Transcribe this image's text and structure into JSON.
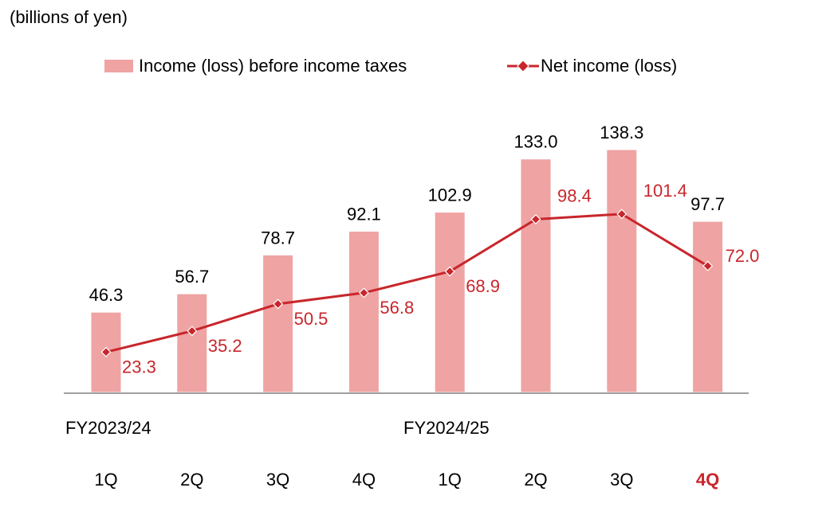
{
  "unit_label": "(billions of yen)",
  "legend": {
    "bar": "Income (loss) before income taxes",
    "line": "Net income (loss)"
  },
  "periods": [
    "FY2023/24",
    "FY2024/25"
  ],
  "colors": {
    "bar": "#EFA3A3",
    "line": "#C8262C",
    "highlight": "#C8262C",
    "text": "#000000",
    "axis": "#808080"
  },
  "chart_data": {
    "type": "bar",
    "categories": [
      "1Q",
      "2Q",
      "3Q",
      "4Q",
      "1Q",
      "2Q",
      "3Q",
      "4Q"
    ],
    "highlight_index": 7,
    "series": [
      {
        "name": "Income (loss) before income taxes",
        "type": "bar",
        "values": [
          46.3,
          56.7,
          78.7,
          92.1,
          102.9,
          133.0,
          138.3,
          97.7
        ],
        "labels": [
          "46.3",
          "56.7",
          "78.7",
          "92.1",
          "102.9",
          "133.0",
          "138.3",
          "97.7"
        ]
      },
      {
        "name": "Net income (loss)",
        "type": "line",
        "values": [
          23.3,
          35.2,
          50.5,
          56.8,
          68.9,
          98.4,
          101.4,
          72.0
        ],
        "labels": [
          "23.3",
          "35.2",
          "50.5",
          "56.8",
          "68.9",
          "98.4",
          "101.4",
          "72.0"
        ]
      }
    ],
    "ylim": [
      0,
      150
    ],
    "grid": false,
    "legend_position": "top"
  }
}
